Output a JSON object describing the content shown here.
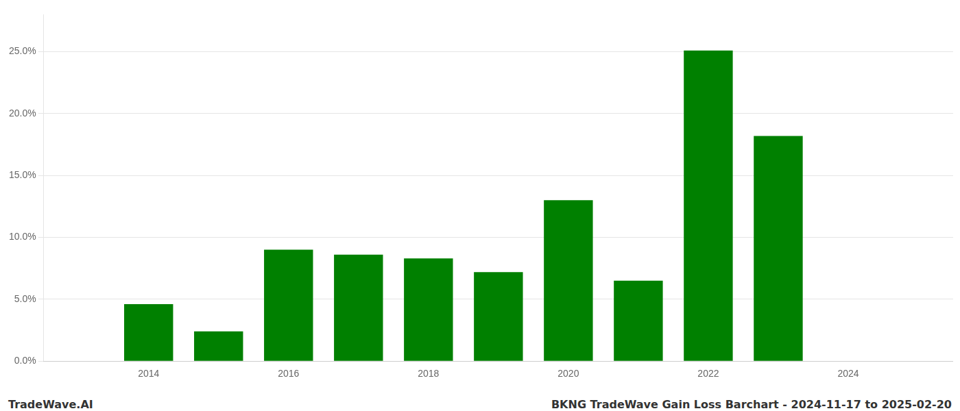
{
  "chart_data": {
    "type": "bar",
    "x": [
      2014,
      2015,
      2016,
      2017,
      2018,
      2019,
      2020,
      2021,
      2022,
      2023
    ],
    "values": [
      0.046,
      0.024,
      0.09,
      0.086,
      0.083,
      0.072,
      0.13,
      0.065,
      0.251,
      0.182
    ],
    "color": "#008000",
    "xlim": [
      2012.5,
      2025.5
    ],
    "xticks": [
      2014,
      2016,
      2018,
      2020,
      2022,
      2024
    ],
    "ylim": [
      0,
      0.28
    ],
    "yticks": [
      {
        "value": 0,
        "label": "0.0%"
      },
      {
        "value": 0.05,
        "label": "5.0%"
      },
      {
        "value": 0.1,
        "label": "10.0%"
      },
      {
        "value": 0.15,
        "label": "15.0%"
      },
      {
        "value": 0.2,
        "label": "20.0%"
      },
      {
        "value": 0.25,
        "label": "25.0%"
      }
    ],
    "grid": true,
    "annotations": [
      "TradeWave.AI",
      "BKNG TradeWave Gain Loss Barchart - 2024-11-17 to 2025-02-20"
    ]
  }
}
